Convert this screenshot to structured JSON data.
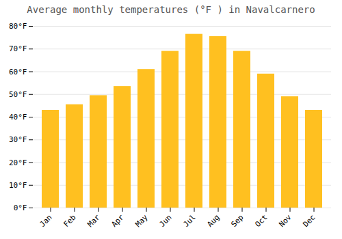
{
  "chart_data": {
    "type": "bar",
    "title": "Average monthly temperatures (°F ) in Navalcarnero",
    "categories": [
      "Jan",
      "Feb",
      "Mar",
      "Apr",
      "May",
      "Jun",
      "Jul",
      "Aug",
      "Sep",
      "Oct",
      "Nov",
      "Dec"
    ],
    "values": [
      43,
      45.5,
      49.5,
      53.5,
      61,
      69,
      76.5,
      75.5,
      69,
      59,
      49,
      43
    ],
    "color": "#FFC020",
    "ylim": [
      0,
      80
    ],
    "yticks": [
      {
        "value": 0,
        "label": "0°F"
      },
      {
        "value": 10,
        "label": "10°F"
      },
      {
        "value": 20,
        "label": "20°F"
      },
      {
        "value": 30,
        "label": "30°F"
      },
      {
        "value": 40,
        "label": "40°F"
      },
      {
        "value": 50,
        "label": "50°F"
      },
      {
        "value": 60,
        "label": "60°F"
      },
      {
        "value": 70,
        "label": "70°F"
      },
      {
        "value": 80,
        "label": "80°F"
      }
    ],
    "grid": true
  }
}
